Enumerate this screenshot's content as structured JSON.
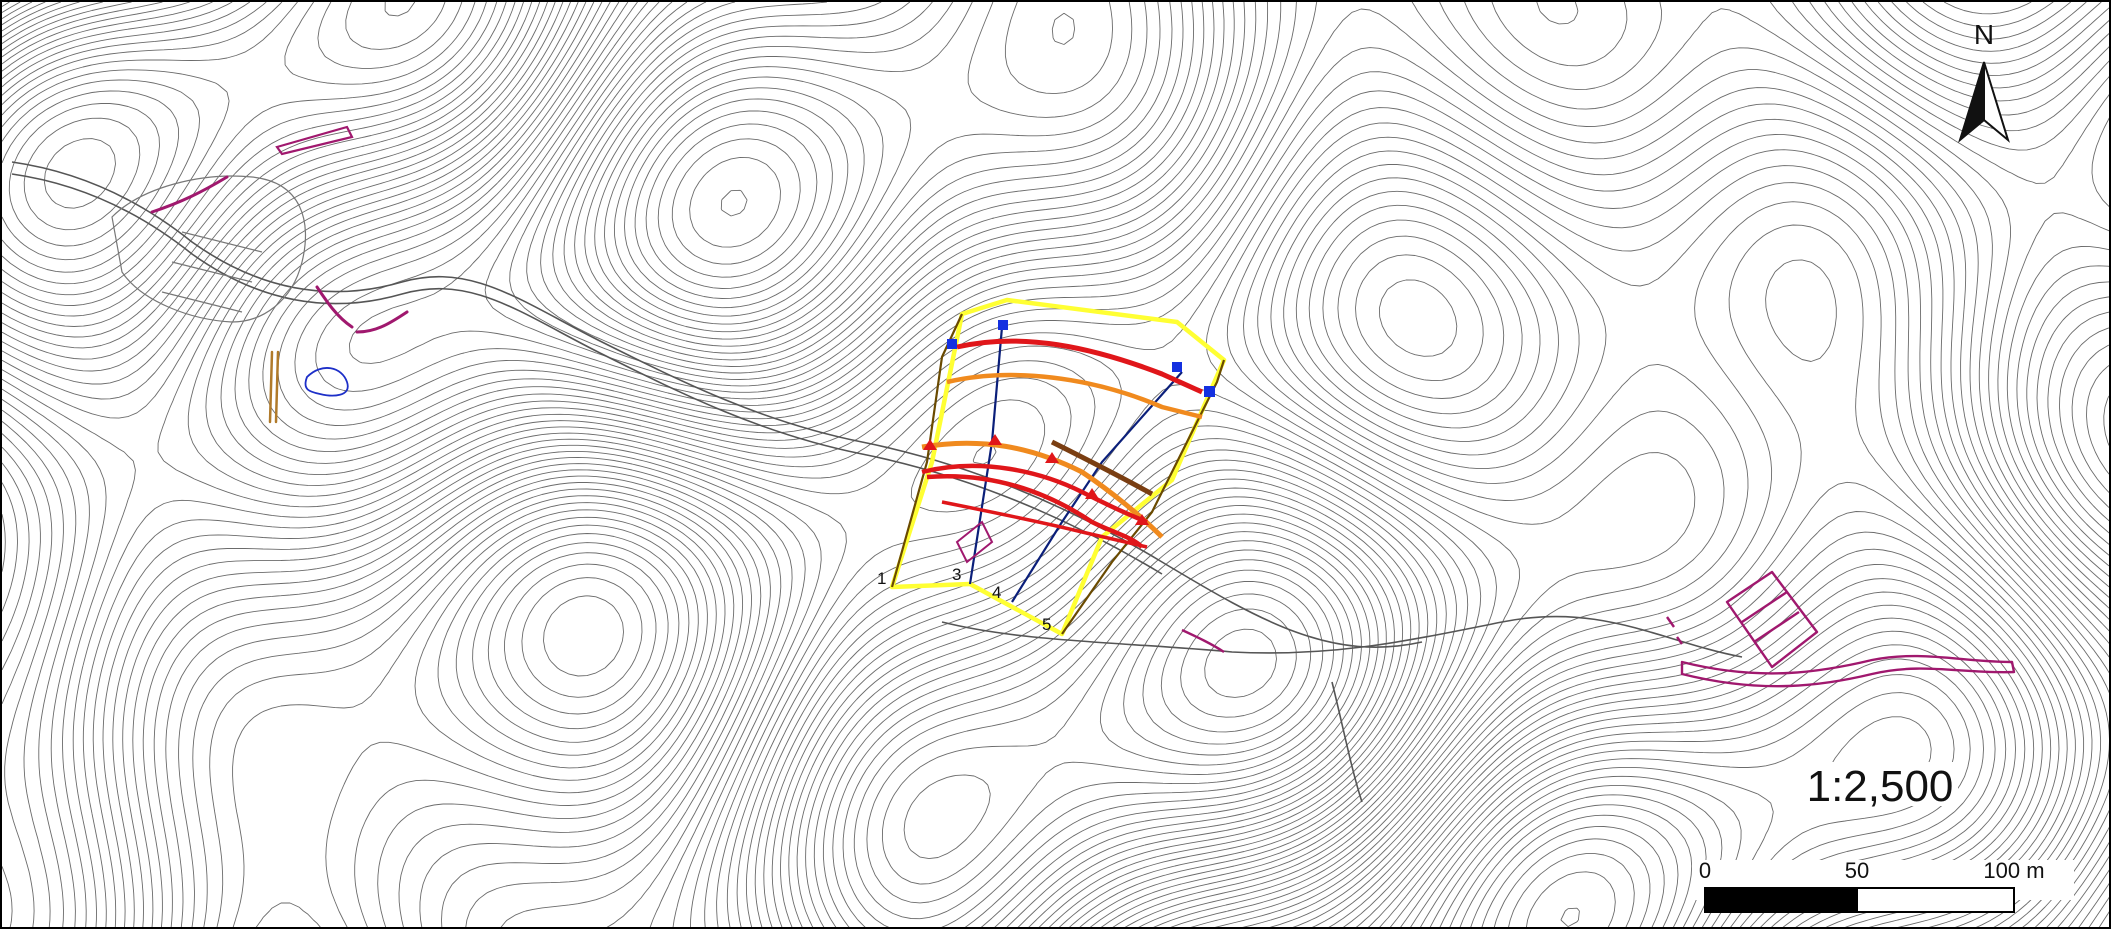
{
  "map": {
    "north_label": "N",
    "scale_ratio": "1:2,500",
    "scale_bar": {
      "tick_labels": [
        "0",
        "50",
        "100 m"
      ]
    },
    "profile_labels": [
      "1",
      "3",
      "4",
      "5"
    ],
    "colors": {
      "contour": "#3a3a3a",
      "boundary": "#ffff33",
      "scarp_red": "#e0161a",
      "scarp_orange": "#f08a1e",
      "scarp_brown": "#7a3e12",
      "profile_line": "#0b1f7a",
      "feature_magenta": "#a0186e",
      "marker_blue": "#1430e0",
      "marker_red": "#e0161a"
    },
    "icons": [
      "north-arrow-icon"
    ]
  }
}
